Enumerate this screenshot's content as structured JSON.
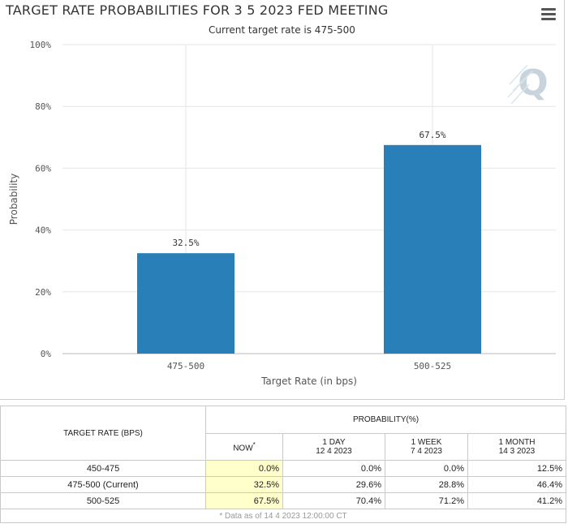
{
  "chart_data": {
    "type": "bar",
    "title": "TARGET RATE PROBABILITIES FOR 3 5 2023 FED MEETING",
    "subtitle": "Current target rate is 475-500",
    "categories": [
      "475-500",
      "500-525"
    ],
    "values": [
      32.5,
      67.5
    ],
    "data_labels": [
      "32.5%",
      "67.5%"
    ],
    "xlabel": "Target Rate (in bps)",
    "ylabel": "Probability",
    "ylim": [
      0,
      100
    ],
    "yticks": [
      "0%",
      "20%",
      "40%",
      "60%",
      "80%",
      "100%"
    ],
    "ytick_values": [
      0,
      20,
      40,
      60,
      80,
      100
    ],
    "grid": true,
    "bar_color": "#2980b9"
  },
  "watermark": "Q",
  "menu": {
    "icon": "hamburger-menu-icon"
  },
  "table": {
    "rate_header": "TARGET RATE (BPS)",
    "prob_header": "PROBABILITY(%)",
    "columns": [
      {
        "label": "NOW",
        "marker": "*",
        "date": ""
      },
      {
        "label": "1 DAY",
        "marker": "",
        "date": "12 4 2023"
      },
      {
        "label": "1 WEEK",
        "marker": "",
        "date": "7 4 2023"
      },
      {
        "label": "1 MONTH",
        "marker": "",
        "date": "14 3 2023"
      }
    ],
    "rows": [
      {
        "rate": "450-475",
        "values": [
          "0.0%",
          "0.0%",
          "0.0%",
          "12.5%"
        ]
      },
      {
        "rate": "475-500 (Current)",
        "values": [
          "32.5%",
          "29.6%",
          "28.8%",
          "46.4%"
        ]
      },
      {
        "rate": "500-525",
        "values": [
          "67.5%",
          "70.4%",
          "71.2%",
          "41.2%"
        ]
      }
    ],
    "footnote": "* Data as of 14 4 2023 12:00:00 CT"
  }
}
